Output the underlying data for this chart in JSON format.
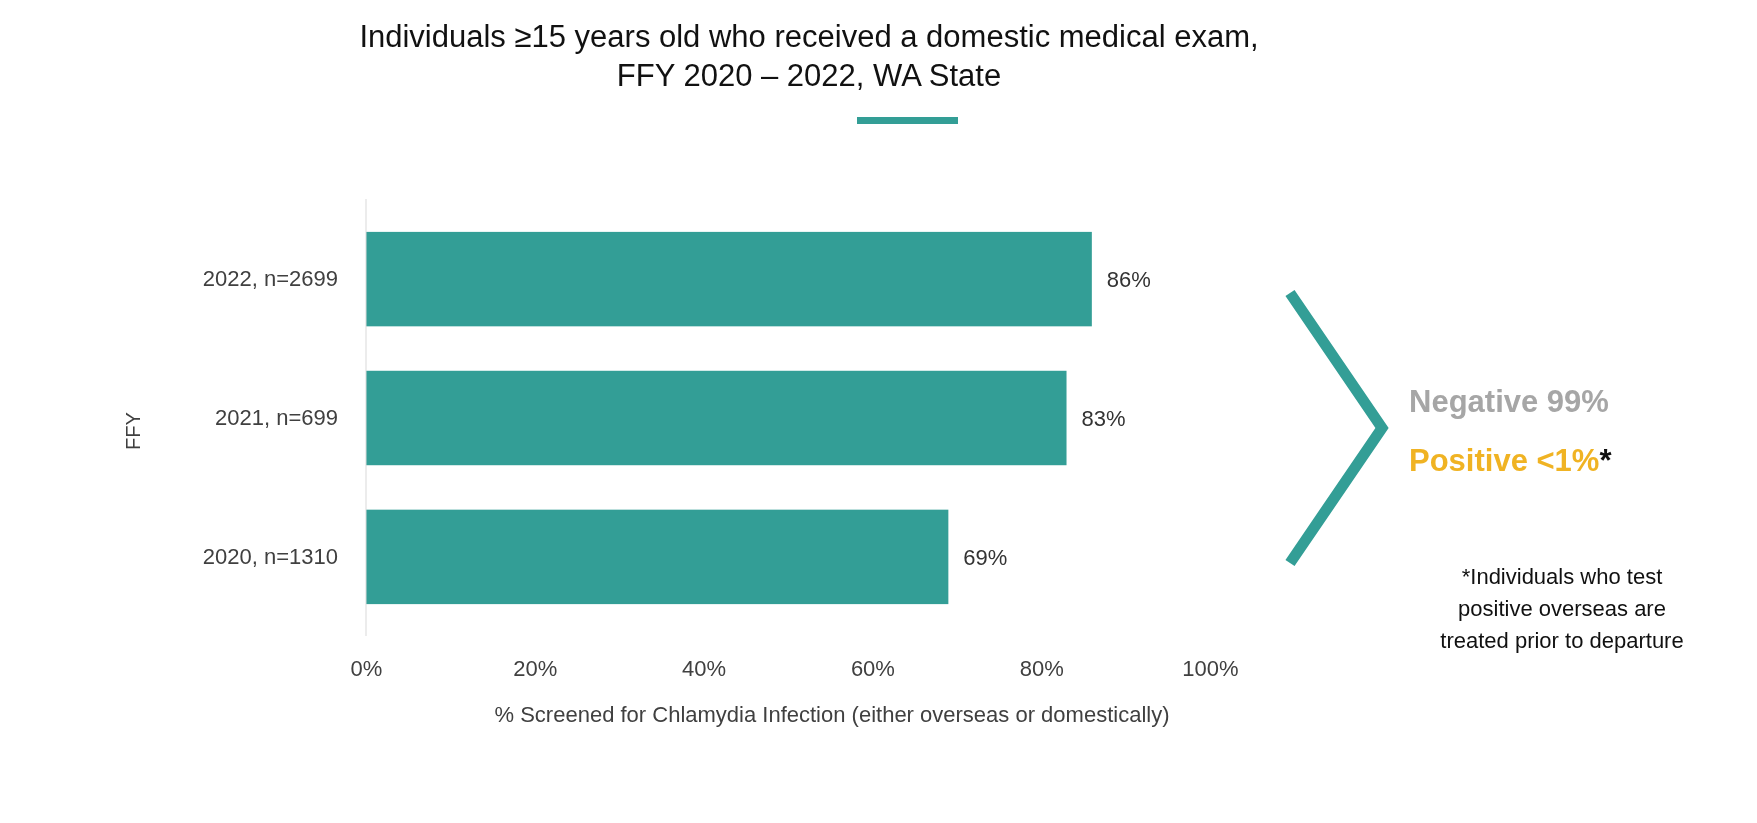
{
  "chart_data": {
    "type": "bar",
    "orientation": "horizontal",
    "title": "Individuals ≥15 years old who received a domestic medical exam,",
    "subtitle": "FFY 2020 – 2022, WA State",
    "ylabel": "FFY",
    "xlabel": "% Screened for Chlamydia Infection (either overseas or domestically)",
    "categories": [
      "2022, n=2699",
      "2021, n=699",
      "2020, n=1310"
    ],
    "values": [
      86,
      83,
      69
    ],
    "value_labels": [
      "86%",
      "83%",
      "69%"
    ],
    "color": "#339e96",
    "xlim": [
      0,
      100
    ],
    "xticks": [
      {
        "value": 0,
        "label": "0%"
      },
      {
        "value": 20,
        "label": "20%"
      },
      {
        "value": 40,
        "label": "40%"
      },
      {
        "value": 60,
        "label": "60%"
      },
      {
        "value": 80,
        "label": "80%"
      },
      {
        "value": 100,
        "label": "100%"
      }
    ],
    "grid": false,
    "annotations": [
      "Negative 99%",
      "Positive <1%*",
      "*Individuals who test positive overseas are treated prior to departure"
    ]
  }
}
